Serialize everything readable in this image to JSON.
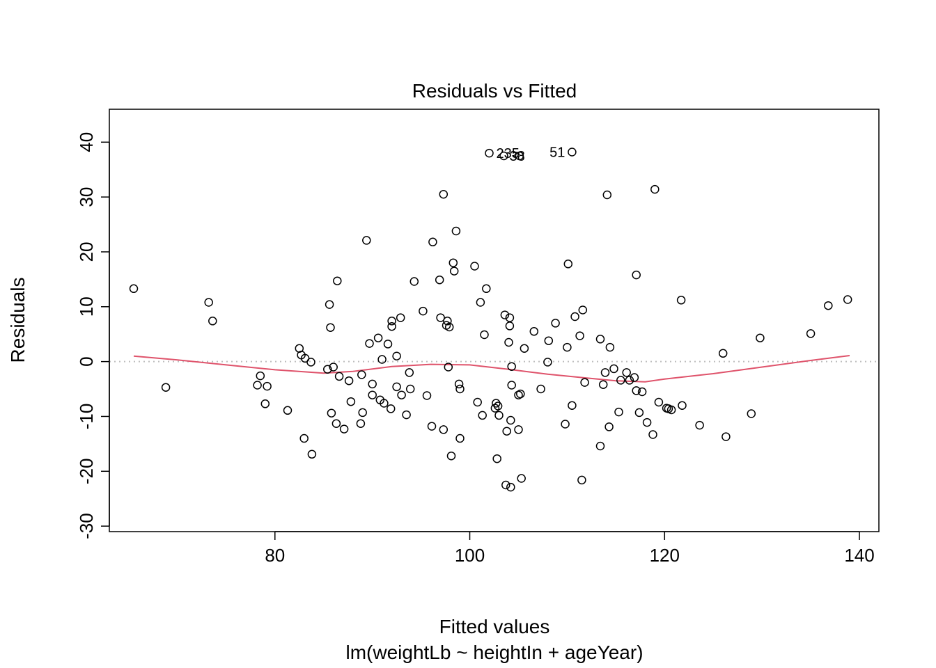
{
  "chart_data": {
    "type": "scatter",
    "title": "Residuals vs Fitted",
    "xlabel": "Fitted values",
    "subtitle": "lm(weightLb ~ heightIn + ageYear)",
    "ylabel": "Residuals",
    "xlim": [
      63,
      142
    ],
    "ylim": [
      -31,
      46
    ],
    "xticks": [
      80,
      100,
      120,
      140
    ],
    "yticks": [
      -30,
      -20,
      -10,
      0,
      10,
      20,
      30,
      40
    ],
    "reference_line_y": 0,
    "colors": {
      "points": "#000000",
      "smooth": "#DF536B",
      "reference": "#BEBEBE",
      "frame": "#000000"
    },
    "point_labels": [
      {
        "text": "235",
        "x": 102.0,
        "y": 38.0
      },
      {
        "text": "38",
        "x": 103.5,
        "y": 37.5
      },
      {
        "text": "51",
        "x": 110.5,
        "y": 38.2
      }
    ],
    "smooth": [
      [
        65.5,
        1.0
      ],
      [
        70,
        0.3
      ],
      [
        75,
        -0.6
      ],
      [
        80,
        -1.5
      ],
      [
        85,
        -2.1
      ],
      [
        88,
        -1.8
      ],
      [
        92,
        -0.9
      ],
      [
        96,
        -0.5
      ],
      [
        100,
        -0.6
      ],
      [
        104,
        -1.4
      ],
      [
        108,
        -2.3
      ],
      [
        112,
        -3.0
      ],
      [
        115,
        -3.5
      ],
      [
        118,
        -3.7
      ],
      [
        120,
        -3.2
      ],
      [
        125,
        -2.2
      ],
      [
        130,
        -1.0
      ],
      [
        135,
        0.2
      ],
      [
        139,
        1.1
      ]
    ],
    "points": [
      [
        65.5,
        13.3
      ],
      [
        68.8,
        -4.7
      ],
      [
        73.2,
        10.8
      ],
      [
        73.6,
        7.4
      ],
      [
        78.2,
        -4.3
      ],
      [
        78.5,
        -2.6
      ],
      [
        79.0,
        -7.7
      ],
      [
        79.2,
        -4.5
      ],
      [
        81.3,
        -8.9
      ],
      [
        82.5,
        2.4
      ],
      [
        82.7,
        1.2
      ],
      [
        83.0,
        -14.0
      ],
      [
        83.1,
        0.6
      ],
      [
        83.7,
        -0.1
      ],
      [
        83.8,
        -16.9
      ],
      [
        85.4,
        -1.4
      ],
      [
        85.6,
        10.4
      ],
      [
        85.7,
        6.2
      ],
      [
        85.8,
        -9.4
      ],
      [
        86.0,
        -1.0
      ],
      [
        86.3,
        -11.3
      ],
      [
        86.4,
        14.7
      ],
      [
        86.6,
        -2.7
      ],
      [
        87.1,
        -12.3
      ],
      [
        87.6,
        -3.5
      ],
      [
        87.8,
        -7.3
      ],
      [
        88.8,
        -11.3
      ],
      [
        88.9,
        -2.4
      ],
      [
        89.0,
        -9.3
      ],
      [
        89.4,
        22.1
      ],
      [
        89.7,
        3.3
      ],
      [
        90.0,
        -4.1
      ],
      [
        90.0,
        -6.1
      ],
      [
        90.6,
        4.3
      ],
      [
        90.8,
        -7.0
      ],
      [
        91.0,
        0.4
      ],
      [
        91.2,
        -7.6
      ],
      [
        91.6,
        3.2
      ],
      [
        91.9,
        -8.6
      ],
      [
        92.0,
        7.4
      ],
      [
        92.0,
        6.4
      ],
      [
        92.5,
        -4.6
      ],
      [
        92.5,
        1.0
      ],
      [
        92.9,
        8.0
      ],
      [
        93.0,
        -6.1
      ],
      [
        93.5,
        -9.7
      ],
      [
        93.8,
        -2.0
      ],
      [
        93.9,
        -5.0
      ],
      [
        94.3,
        14.6
      ],
      [
        95.2,
        9.2
      ],
      [
        95.6,
        -6.2
      ],
      [
        96.1,
        -11.8
      ],
      [
        96.2,
        21.8
      ],
      [
        96.9,
        14.9
      ],
      [
        97.0,
        8.0
      ],
      [
        97.3,
        -12.4
      ],
      [
        97.3,
        30.5
      ],
      [
        97.6,
        6.6
      ],
      [
        97.7,
        7.4
      ],
      [
        97.8,
        -1.0
      ],
      [
        97.9,
        6.3
      ],
      [
        98.1,
        -17.2
      ],
      [
        98.3,
        18.0
      ],
      [
        98.4,
        16.5
      ],
      [
        98.6,
        23.8
      ],
      [
        98.9,
        -4.1
      ],
      [
        99.0,
        -14.0
      ],
      [
        99.0,
        -5.0
      ],
      [
        100.5,
        17.4
      ],
      [
        100.8,
        -7.4
      ],
      [
        101.1,
        10.8
      ],
      [
        101.3,
        -9.8
      ],
      [
        101.5,
        4.9
      ],
      [
        101.7,
        13.3
      ],
      [
        102.0,
        38.0
      ],
      [
        102.6,
        -8.5
      ],
      [
        102.7,
        -7.6
      ],
      [
        102.8,
        -17.7
      ],
      [
        102.9,
        -8.1
      ],
      [
        103.0,
        -9.8
      ],
      [
        103.5,
        37.5
      ],
      [
        103.6,
        8.5
      ],
      [
        103.7,
        -22.5
      ],
      [
        103.8,
        -12.7
      ],
      [
        104.0,
        3.5
      ],
      [
        104.1,
        6.5
      ],
      [
        104.1,
        8.0
      ],
      [
        104.2,
        -22.9
      ],
      [
        104.2,
        -10.7
      ],
      [
        104.3,
        -4.3
      ],
      [
        104.3,
        -0.9
      ],
      [
        105.0,
        -12.4
      ],
      [
        105.0,
        -6.1
      ],
      [
        105.1,
        37.5
      ],
      [
        105.2,
        -5.9
      ],
      [
        105.3,
        -21.3
      ],
      [
        105.6,
        2.4
      ],
      [
        106.6,
        5.5
      ],
      [
        107.3,
        -5.0
      ],
      [
        108.0,
        -0.1
      ],
      [
        108.1,
        3.8
      ],
      [
        108.8,
        7.0
      ],
      [
        109.8,
        -11.4
      ],
      [
        110.0,
        2.6
      ],
      [
        110.1,
        17.8
      ],
      [
        110.5,
        38.2
      ],
      [
        110.5,
        -8.0
      ],
      [
        110.8,
        8.2
      ],
      [
        111.3,
        4.7
      ],
      [
        111.6,
        9.4
      ],
      [
        111.5,
        -21.6
      ],
      [
        111.8,
        -3.8
      ],
      [
        113.4,
        -15.4
      ],
      [
        113.4,
        4.1
      ],
      [
        113.7,
        -4.2
      ],
      [
        113.9,
        -2.0
      ],
      [
        114.1,
        30.4
      ],
      [
        114.3,
        -11.9
      ],
      [
        114.4,
        2.6
      ],
      [
        114.8,
        -1.3
      ],
      [
        115.3,
        -9.2
      ],
      [
        115.5,
        -3.4
      ],
      [
        116.1,
        -2.0
      ],
      [
        116.4,
        -3.4
      ],
      [
        116.9,
        -2.9
      ],
      [
        117.1,
        15.8
      ],
      [
        117.1,
        -5.3
      ],
      [
        117.4,
        -9.3
      ],
      [
        117.7,
        -5.5
      ],
      [
        118.2,
        -11.1
      ],
      [
        118.8,
        -13.3
      ],
      [
        119.0,
        31.4
      ],
      [
        119.4,
        -7.4
      ],
      [
        120.2,
        -8.5
      ],
      [
        120.4,
        -8.6
      ],
      [
        120.7,
        -8.8
      ],
      [
        121.7,
        11.2
      ],
      [
        121.8,
        -8.0
      ],
      [
        123.6,
        -11.6
      ],
      [
        126.0,
        1.5
      ],
      [
        126.3,
        -13.7
      ],
      [
        128.9,
        -9.5
      ],
      [
        129.8,
        4.3
      ],
      [
        135.0,
        5.1
      ],
      [
        136.8,
        10.2
      ],
      [
        138.8,
        11.3
      ]
    ]
  }
}
